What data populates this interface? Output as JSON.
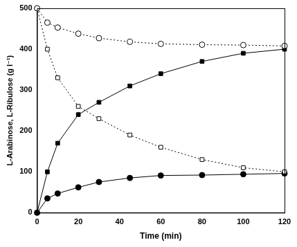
{
  "chart_data": {
    "type": "line",
    "x_label": "Time (min)",
    "y_label": "L-Arabinose, L-Ribulose (g l⁻¹)",
    "x": [
      0,
      5,
      10,
      20,
      30,
      45,
      60,
      80,
      100,
      120
    ],
    "series": [
      {
        "color": "#000000",
        "marker": "circle_open",
        "line_style": "dotted",
        "values": [
          500,
          465,
          453,
          438,
          427,
          418,
          413,
          411,
          410,
          408
        ]
      },
      {
        "color": "#000000",
        "marker": "square_filled",
        "line_style": "solid",
        "values": [
          0,
          100,
          170,
          240,
          270,
          310,
          340,
          370,
          390,
          400
        ]
      },
      {
        "color": "#000000",
        "marker": "square_open",
        "line_style": "dotted",
        "values": [
          500,
          400,
          330,
          260,
          230,
          190,
          160,
          130,
          110,
          100
        ]
      },
      {
        "color": "#000000",
        "marker": "circle_filled",
        "line_style": "solid",
        "values": [
          0,
          35,
          47,
          62,
          75,
          85,
          91,
          92,
          94,
          96
        ]
      }
    ],
    "xlim": [
      0,
      120
    ],
    "xticks": [
      0,
      20,
      40,
      60,
      80,
      100,
      120
    ],
    "ylim": [
      0,
      500
    ],
    "yticks": [
      0,
      100,
      200,
      300,
      400,
      500
    ],
    "grid": false
  }
}
